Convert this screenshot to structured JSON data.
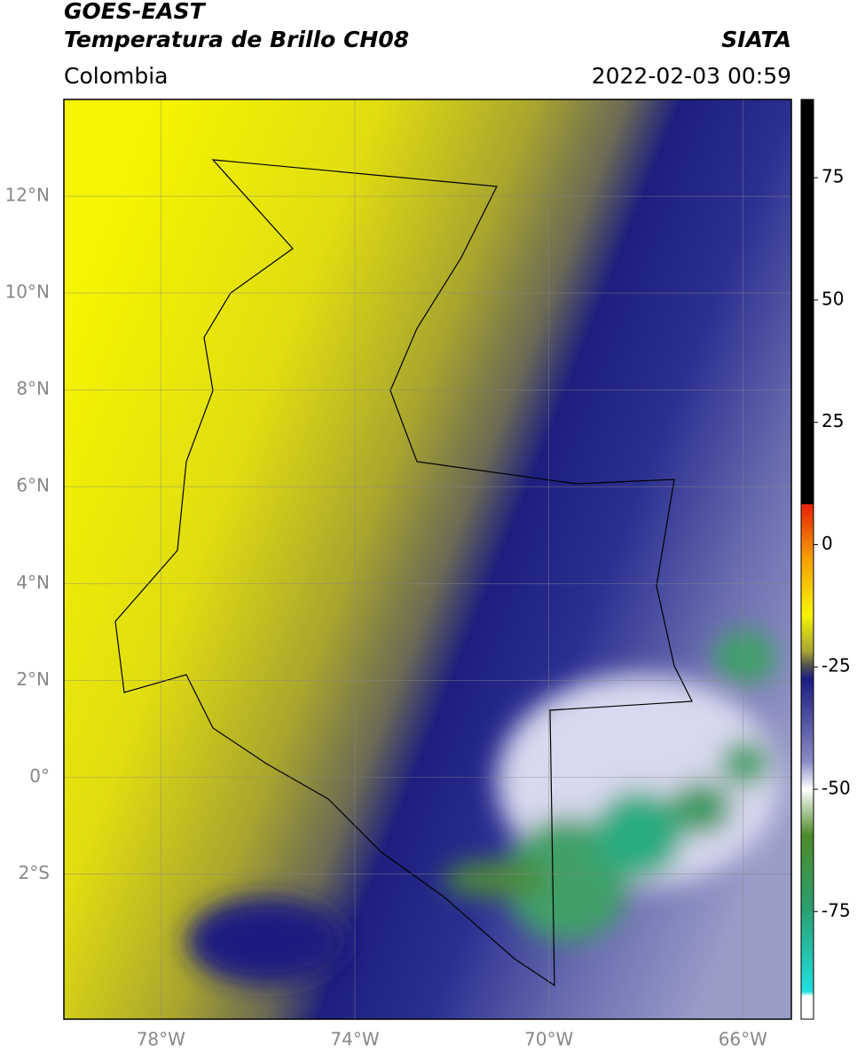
{
  "header": {
    "title": "GOES-EAST",
    "subtitle": "Temperatura de Brillo CH08",
    "region": "Colombia",
    "source": "SIATA",
    "datetime": "2022-02-03 00:59"
  },
  "map": {
    "xlim": [
      -80,
      -65
    ],
    "ylim": [
      -5,
      14
    ],
    "xticks": [
      {
        "value": -78,
        "label": "78°W"
      },
      {
        "value": -74,
        "label": "74°W"
      },
      {
        "value": -70,
        "label": "70°W"
      },
      {
        "value": -66,
        "label": "66°W"
      }
    ],
    "yticks": [
      {
        "value": 12,
        "label": "12°N"
      },
      {
        "value": 10,
        "label": "10°N"
      },
      {
        "value": 8,
        "label": "8°N"
      },
      {
        "value": 6,
        "label": "6°N"
      },
      {
        "value": 4,
        "label": "4°N"
      },
      {
        "value": 2,
        "label": "2°N"
      },
      {
        "value": 0,
        "label": "0°"
      },
      {
        "value": -2,
        "label": "2°S"
      }
    ],
    "grid": true
  },
  "colorbar": {
    "clim": [
      -97,
      91
    ],
    "ticks": [
      75,
      50,
      25,
      0,
      -25,
      -50,
      -75
    ]
  }
}
